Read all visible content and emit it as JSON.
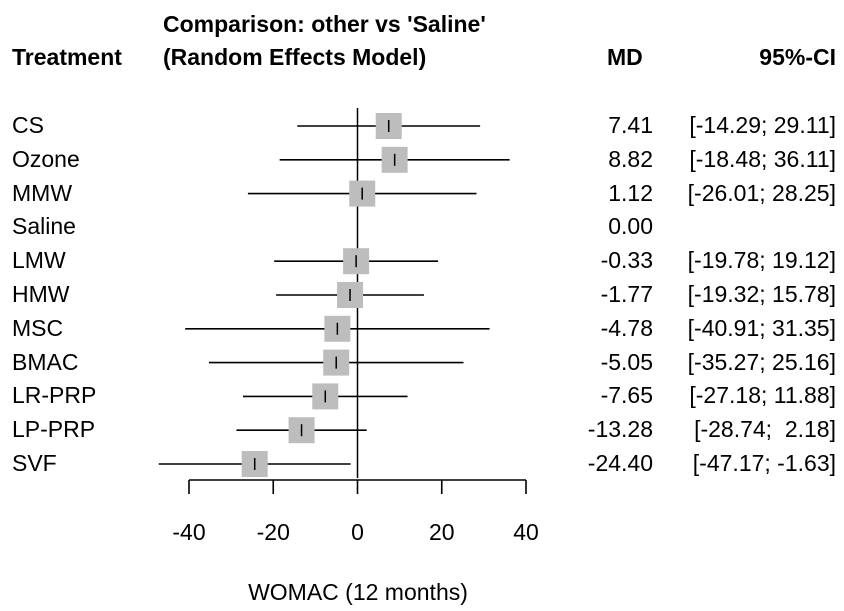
{
  "header": {
    "treatment": "Treatment",
    "comparison_line1": "Comparison: other vs 'Saline'",
    "comparison_line2": "(Random Effects Model)",
    "md": "MD",
    "ci": "95%-CI"
  },
  "chart_data": {
    "type": "forest",
    "xlabel": "WOMAC (12 months)",
    "xlim": [
      -40,
      40
    ],
    "x_ticks": [
      "-40",
      "-20",
      "0",
      "20",
      "40"
    ],
    "reference_line": 0,
    "rows": [
      {
        "treatment": "CS",
        "md": 7.41,
        "md_text": "7.41",
        "lower": -14.29,
        "upper": 29.11,
        "ci_text": "[-14.29; 29.11]"
      },
      {
        "treatment": "Ozone",
        "md": 8.82,
        "md_text": "8.82",
        "lower": -18.48,
        "upper": 36.11,
        "ci_text": "[-18.48; 36.11]"
      },
      {
        "treatment": "MMW",
        "md": 1.12,
        "md_text": "1.12",
        "lower": -26.01,
        "upper": 28.25,
        "ci_text": "[-26.01; 28.25]"
      },
      {
        "treatment": "Saline",
        "md": 0.0,
        "md_text": "0.00",
        "lower": null,
        "upper": null,
        "ci_text": ""
      },
      {
        "treatment": "LMW",
        "md": -0.33,
        "md_text": "-0.33",
        "lower": -19.78,
        "upper": 19.12,
        "ci_text": "[-19.78; 19.12]"
      },
      {
        "treatment": "HMW",
        "md": -1.77,
        "md_text": "-1.77",
        "lower": -19.32,
        "upper": 15.78,
        "ci_text": "[-19.32; 15.78]"
      },
      {
        "treatment": "MSC",
        "md": -4.78,
        "md_text": "-4.78",
        "lower": -40.91,
        "upper": 31.35,
        "ci_text": "[-40.91; 31.35]"
      },
      {
        "treatment": "BMAC",
        "md": -5.05,
        "md_text": "-5.05",
        "lower": -35.27,
        "upper": 25.16,
        "ci_text": "[-35.27; 25.16]"
      },
      {
        "treatment": "LR-PRP",
        "md": -7.65,
        "md_text": "-7.65",
        "lower": -27.18,
        "upper": 11.88,
        "ci_text": "[-27.18; 11.88]"
      },
      {
        "treatment": "LP-PRP",
        "md": -13.28,
        "md_text": "-13.28",
        "lower": -28.74,
        "upper": 2.18,
        "ci_text": "[-28.74;  2.18]"
      },
      {
        "treatment": "SVF",
        "md": -24.4,
        "md_text": "-24.40",
        "lower": -47.17,
        "upper": -1.63,
        "ci_text": "[-47.17; -1.63]"
      }
    ],
    "colors": {
      "marker": "#bdbdbd",
      "line": "#000000"
    }
  }
}
